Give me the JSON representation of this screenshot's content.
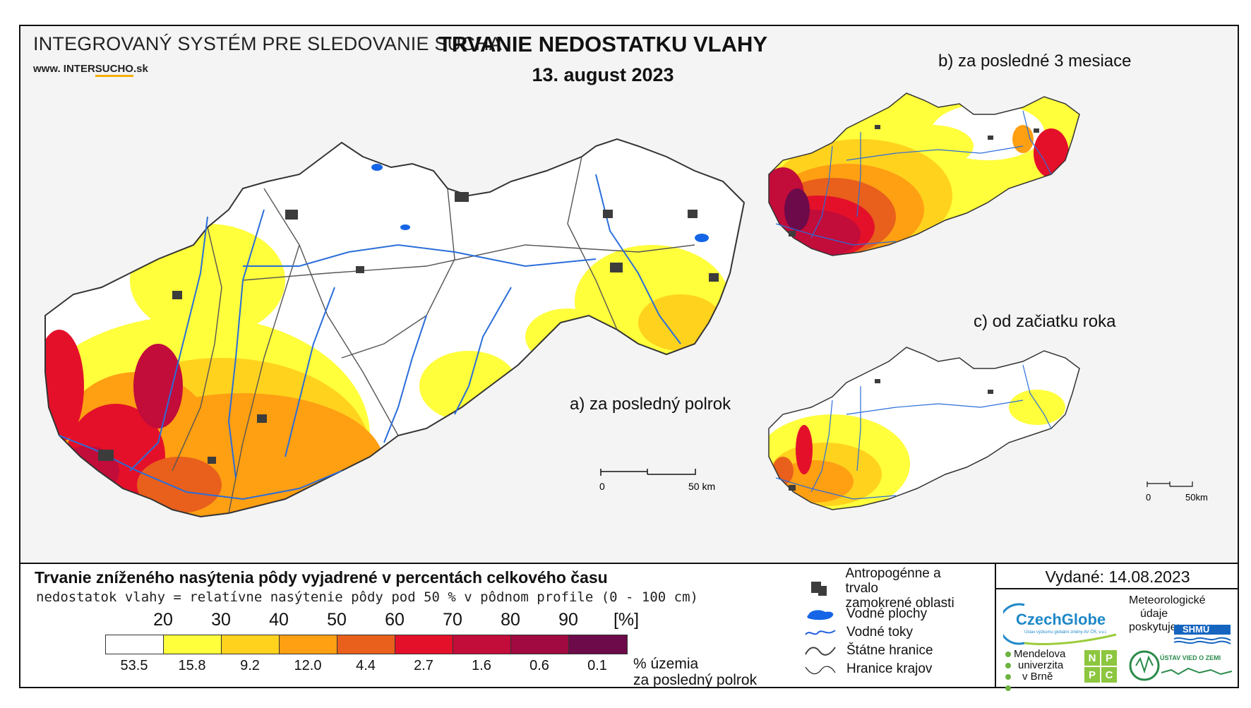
{
  "header": {
    "system": "INTEGROVANÝ SYSTÉM PRE SLEDOVANIE SUCHA",
    "www_prefix": "www. INTER",
    "www_highlight": "SUCHO",
    "www_suffix": ".sk",
    "title": "TRVANIE NEDOSTATKU VLAHY",
    "date": "13. august 2023"
  },
  "maps": {
    "a_label": "a) za posledný polrok",
    "b_label": "b) za posledné 3 mesiace",
    "c_label": "c) od začiatku roka",
    "scale_a": {
      "zero": "0",
      "end": "50 km"
    },
    "scale_c": {
      "zero": "0",
      "end": "50km"
    }
  },
  "legend": {
    "title": "Trvanie zníženého nasýtenia pôdy vyjadrené v percentách celkového času",
    "subtitle": "nedostatok vlahy = relatívne nasýtenie pôdy pod 50 % v pôdnom profile (0 - 100 cm)",
    "ticks": [
      "20",
      "30",
      "40",
      "50",
      "60",
      "70",
      "80",
      "90",
      "[%]"
    ],
    "colors": [
      "#ffffff",
      "#ffff3c",
      "#ffd21e",
      "#ff9f12",
      "#e8601c",
      "#e4102a",
      "#c20c3a",
      "#a00a40",
      "#6c0a4a"
    ],
    "percentages": [
      "53.5",
      "15.8",
      "9.2",
      "12.0",
      "4.4",
      "2.7",
      "1.6",
      "0.6",
      "0.1"
    ],
    "pct_caption_1": "% územia",
    "pct_caption_2": "za posledný polrok"
  },
  "symbols": [
    {
      "icon": "urban-area-icon",
      "label_1": "Antropogénne a trvalo",
      "label_2": "zamokrené oblasti"
    },
    {
      "icon": "water-body-icon",
      "label_1": "Vodné plochy"
    },
    {
      "icon": "river-icon",
      "label_1": "Vodné toky"
    },
    {
      "icon": "state-border-icon",
      "label_1": "Štátne hranice"
    },
    {
      "icon": "region-border-icon",
      "label_1": "Hranice krajov"
    }
  ],
  "issued": "Vydané: 14.08.2023",
  "logos": {
    "czechglobe": "CzechGlobe",
    "czechglobe_sub": "Ústav výzkumu globální změny AV ČR, v.v.i.",
    "meteo_1": "Meteorologické",
    "meteo_2": "údaje",
    "meteo_3": "poskytuje:",
    "shmu": "SHMÚ",
    "mendel_1": "Mendelova",
    "mendel_2": "univerzita",
    "mendel_3": "v Brně",
    "nppc": [
      "N",
      "P",
      "P",
      "C"
    ],
    "uvz": "ÚSTAV VIED O ZEMI"
  }
}
